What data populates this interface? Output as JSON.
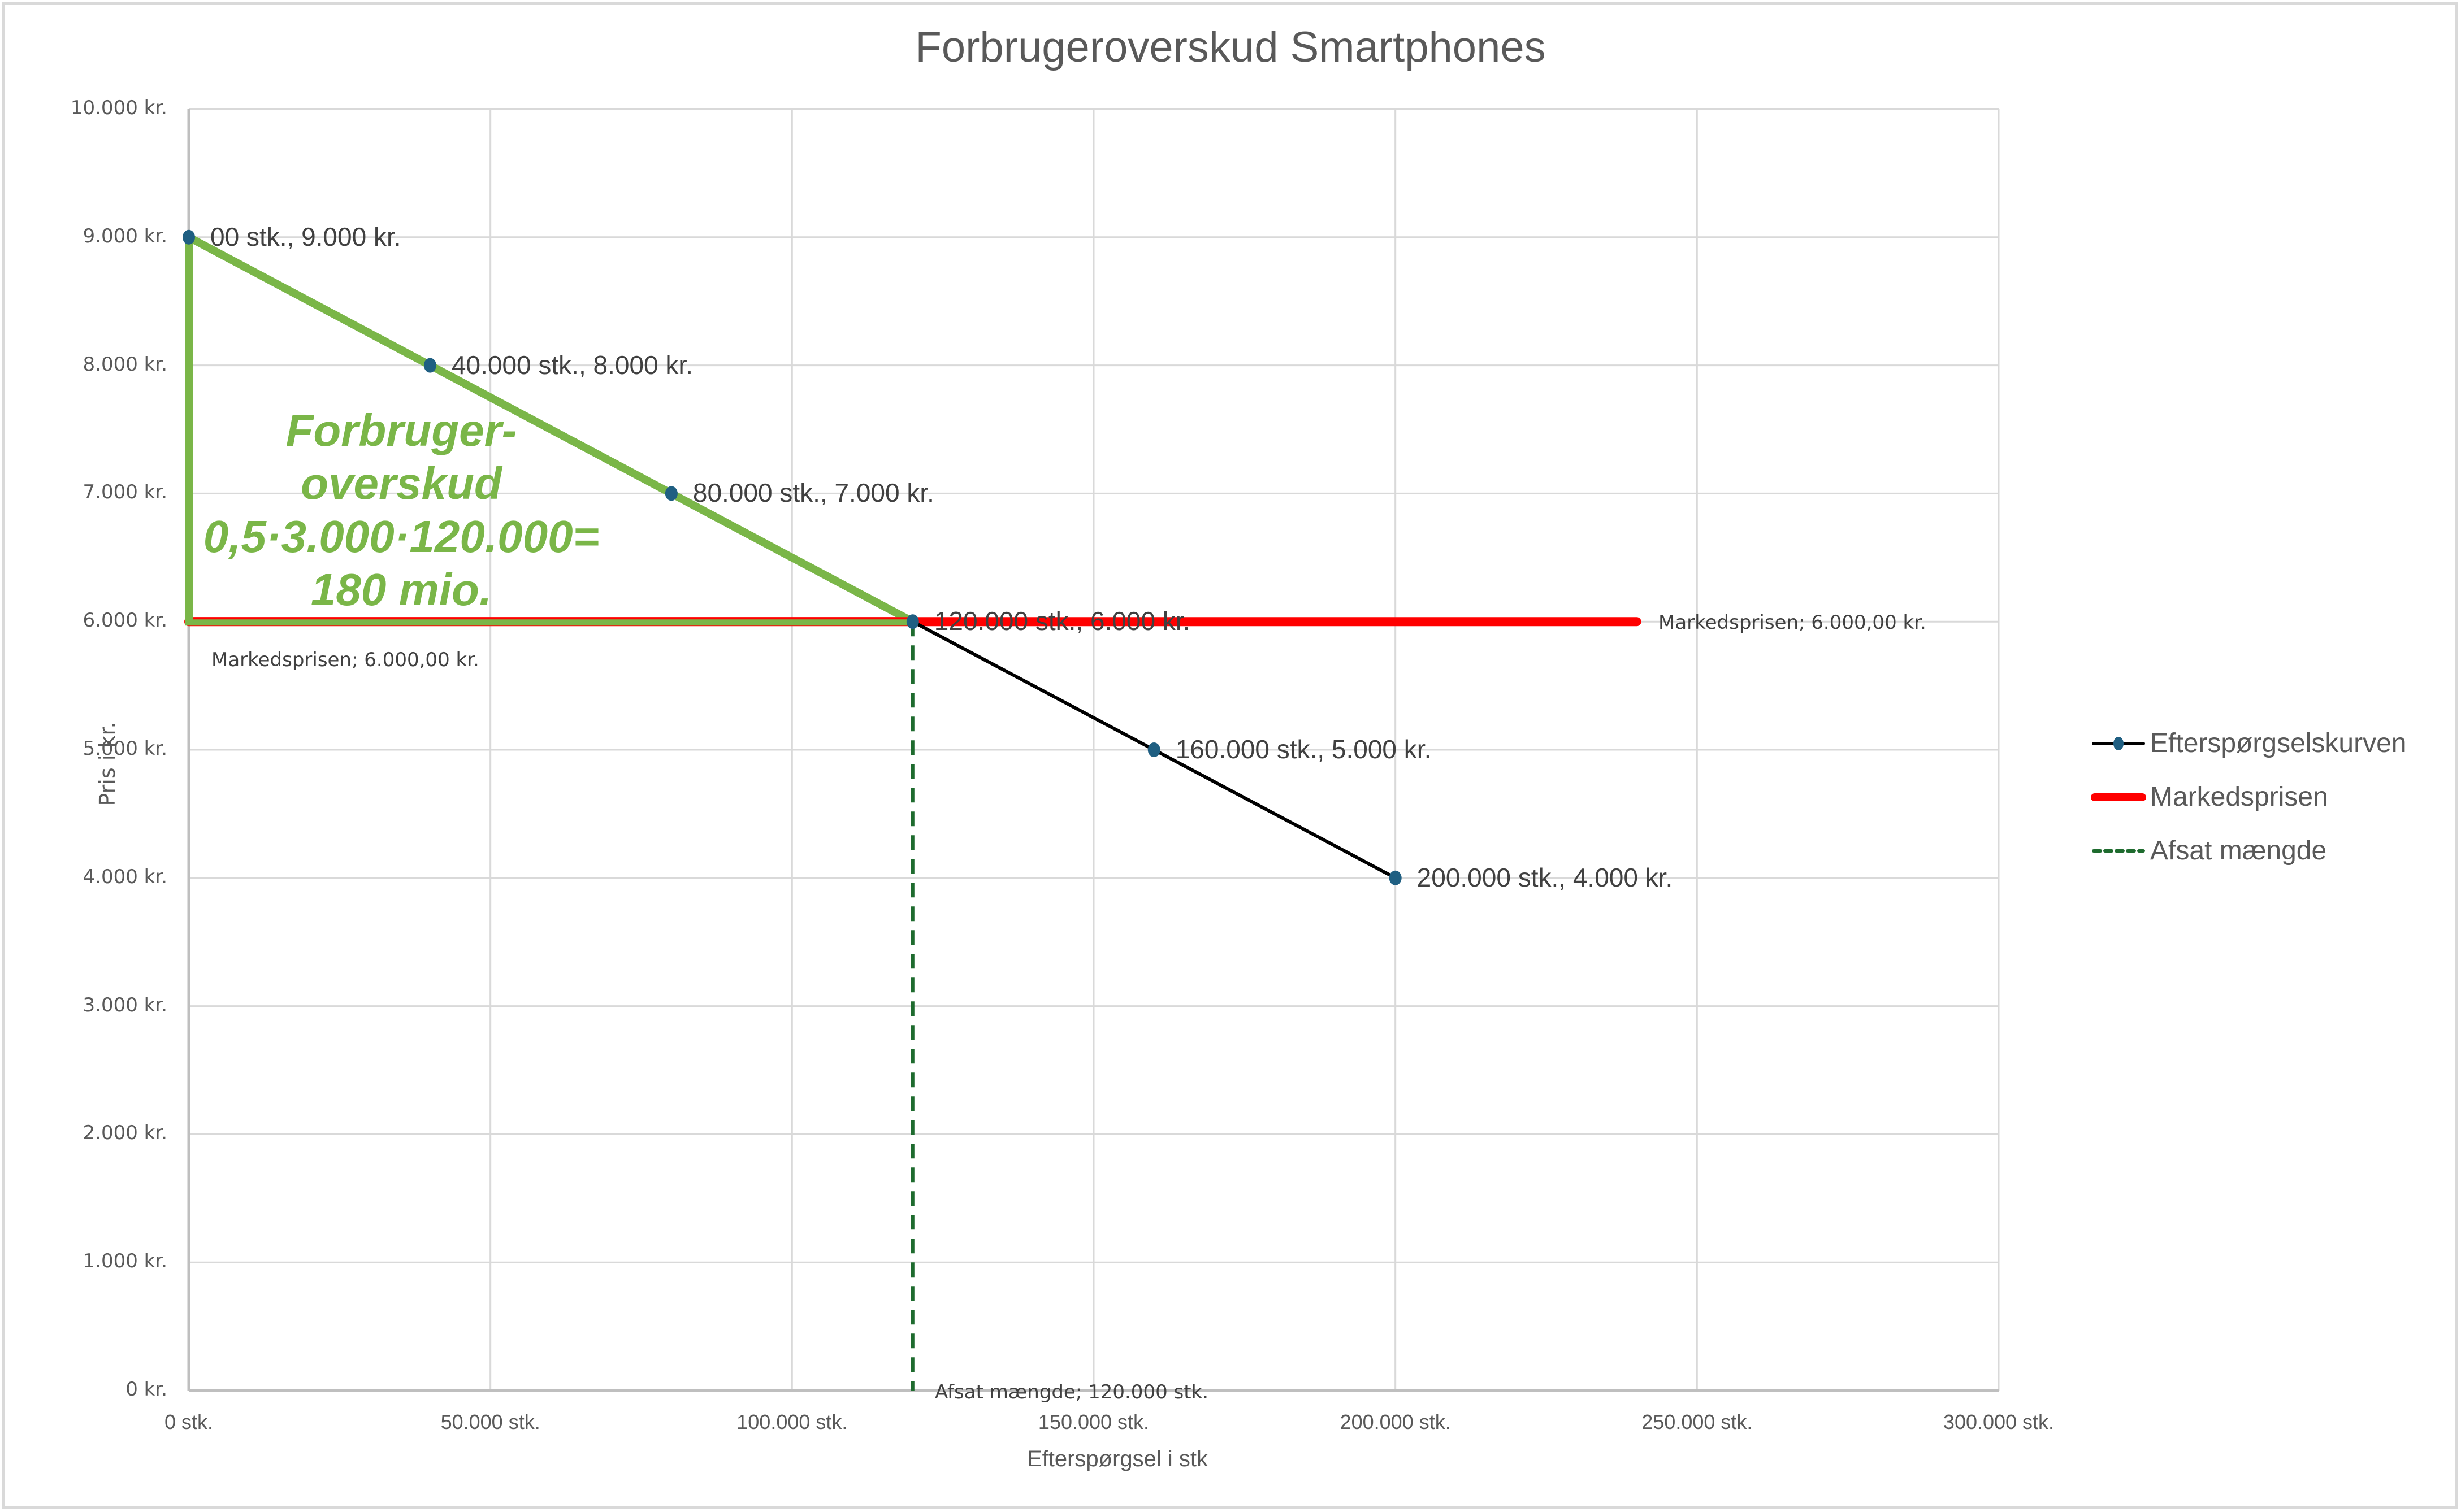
{
  "chart_data": {
    "type": "line",
    "title": "Forbrugeroverskud Smartphones",
    "xlabel": "Efterspørgsel i stk",
    "ylabel": "Pris i kr.",
    "xlim": [
      0,
      300000
    ],
    "ylim": [
      0,
      10000
    ],
    "grid": true,
    "legend_position": "right",
    "x_ticks": [
      "0 stk.",
      "50.000 stk.",
      "100.000 stk.",
      "150.000 stk.",
      "200.000 stk.",
      "250.000 stk.",
      "300.000 stk."
    ],
    "y_ticks": [
      "0 kr.",
      "1.000 kr.",
      "2.000 kr.",
      "3.000 kr.",
      "4.000 kr.",
      "5.000 kr.",
      "6.000 kr.",
      "7.000 kr.",
      "8.000 kr.",
      "9.000 kr.",
      "10.000 kr."
    ],
    "series": [
      {
        "name": "Efterspørgselskurven",
        "color": "#000000",
        "marker_color": "#1f5f82",
        "x": [
          0,
          40000,
          80000,
          120000,
          160000,
          200000
        ],
        "y": [
          9000,
          8000,
          7000,
          6000,
          5000,
          4000
        ],
        "labels": [
          "00 stk., 9.000 kr.",
          "40.000 stk., 8.000 kr.",
          "80.000 stk., 7.000 kr.",
          "120.000 stk., 6.000 kr.",
          "160.000 stk., 5.000 kr.",
          "200.000 stk., 4.000 kr."
        ]
      },
      {
        "name": "Markedsprisen",
        "color": "#ff0000",
        "x": [
          0,
          240000
        ],
        "y": [
          6000,
          6000
        ],
        "labels": [
          "Markedsprisen; 6.000,00 kr.",
          "Markedsprisen; 6.000,00 kr."
        ]
      },
      {
        "name": "Afsat mængde",
        "color": "#1e6b2e",
        "dash": true,
        "x": [
          120000,
          120000
        ],
        "y": [
          6000,
          0
        ],
        "labels": [
          "Afsat mængde; 120.000 stk."
        ]
      }
    ],
    "annotations": [
      {
        "type": "triangle",
        "color": "#7ab648",
        "vertices": [
          [
            0,
            9000
          ],
          [
            120000,
            6000
          ],
          [
            0,
            6000
          ]
        ],
        "text_lines": [
          "Forbruger-",
          "overskud",
          "0,5·3.000·120.000=",
          "180 mio."
        ]
      }
    ]
  }
}
